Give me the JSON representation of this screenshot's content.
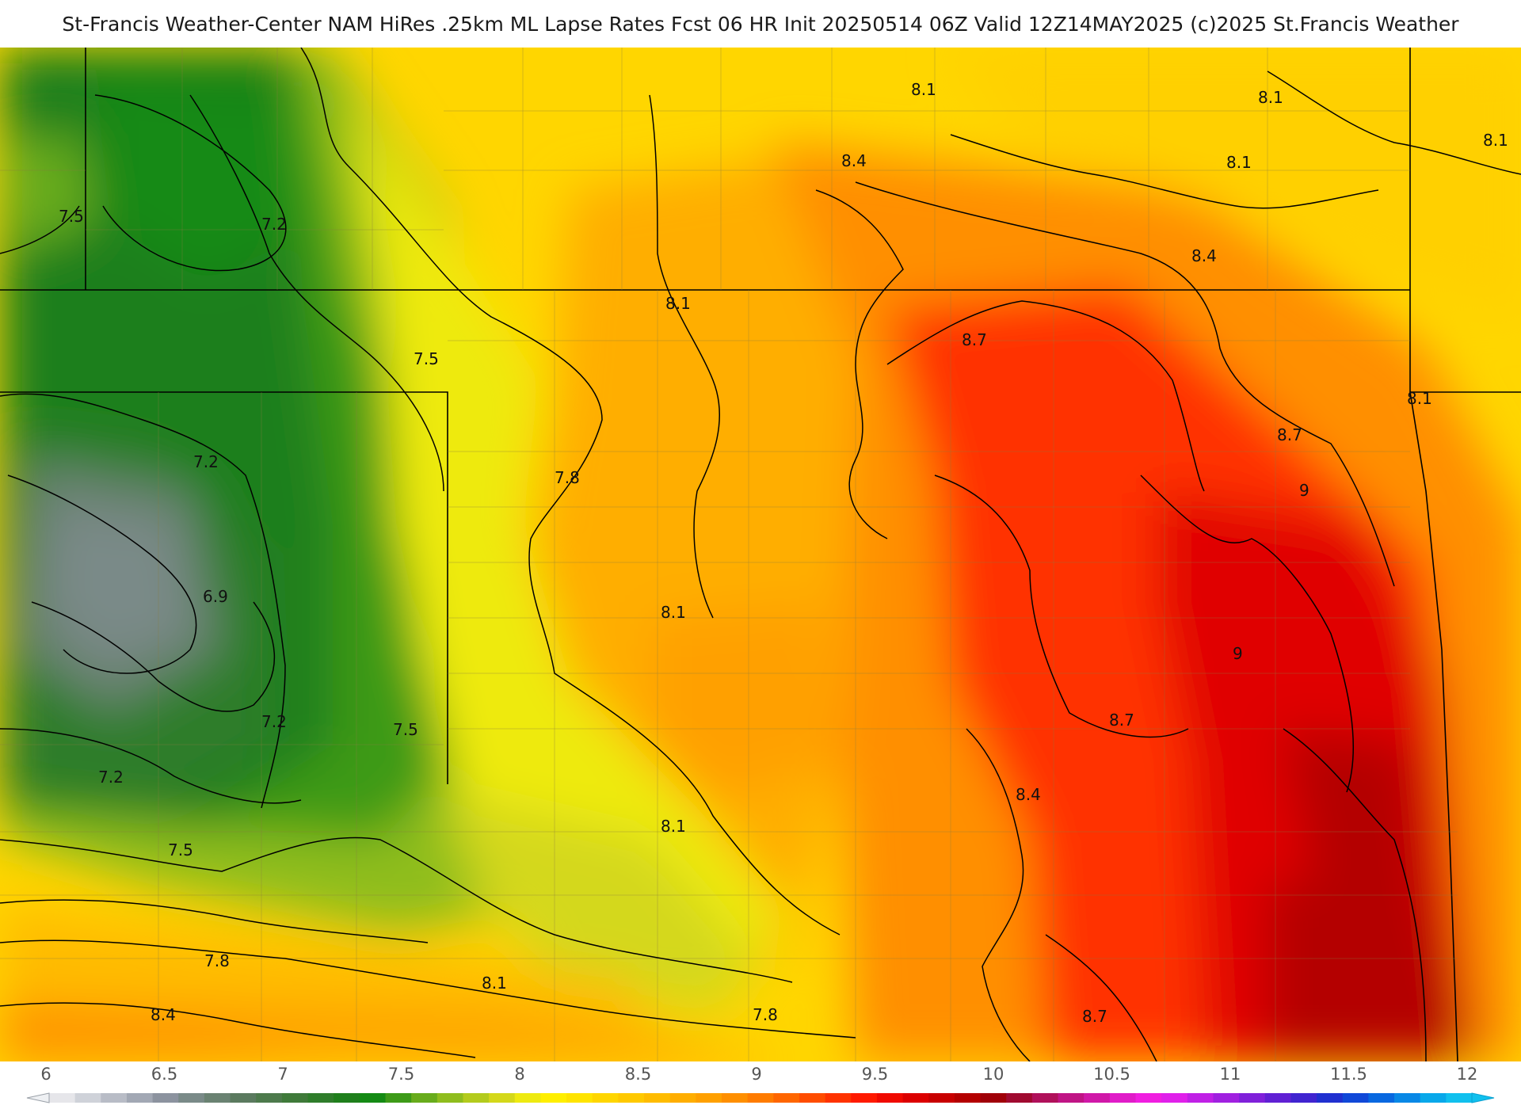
{
  "header": {
    "title": "St-Francis Weather-Center NAM HiRes .25km ML Lapse Rates  Fcst 06 HR Init 20250514 06Z  Valid 12Z14MAY2025    (c)2025 St.Francis Weather"
  },
  "map": {
    "field": "ML Lapse Rates",
    "contour_labels": [
      "7.5",
      "7.2",
      "7.5",
      "7.2",
      "6.9",
      "7.2",
      "7.5",
      "7.2",
      "7.5",
      "7.8",
      "8.4",
      "7.8",
      "8.1",
      "8.1",
      "8.1",
      "8.1",
      "7.8",
      "8.1",
      "8.4",
      "8.1",
      "8.1",
      "8.1",
      "8.4",
      "8.7",
      "8.7",
      "9",
      "9",
      "8.7",
      "8.4",
      "8.7",
      "8.1"
    ]
  },
  "colorbar": {
    "tick_labels": [
      "6",
      "6.5",
      "7",
      "7.5",
      "8",
      "8.5",
      "9",
      "9.5",
      "10",
      "10.5",
      "11",
      "11.5",
      "12"
    ],
    "colors": [
      "#e6e6ea",
      "#cfd2d9",
      "#b8bcc6",
      "#a2a8b4",
      "#8c939f",
      "#7a8a88",
      "#6a8272",
      "#5b7a5f",
      "#4d7a4c",
      "#3f7a3a",
      "#2f7d2b",
      "#1f7f1c",
      "#148a14",
      "#3d9a18",
      "#68ac1c",
      "#8fbd1e",
      "#b3cb1d",
      "#d4d81a",
      "#eeea10",
      "#ffef00",
      "#ffe400",
      "#ffd600",
      "#ffc900",
      "#ffbc00",
      "#ffae00",
      "#ffa000",
      "#ff8f00",
      "#ff7c00",
      "#ff6600",
      "#ff4d00",
      "#ff3300",
      "#ff1a00",
      "#f00a00",
      "#dc0000",
      "#c80000",
      "#b40000",
      "#a00008",
      "#a00a30",
      "#b0105a",
      "#c01485",
      "#d018a8",
      "#e01cc8",
      "#f01ee0",
      "#e020ea",
      "#c020e6",
      "#a020e0",
      "#8020da",
      "#6020d4",
      "#4024d0",
      "#2030d0",
      "#1048d8",
      "#0868e0",
      "#0888e6",
      "#08a8ea",
      "#10c0ee"
    ]
  }
}
